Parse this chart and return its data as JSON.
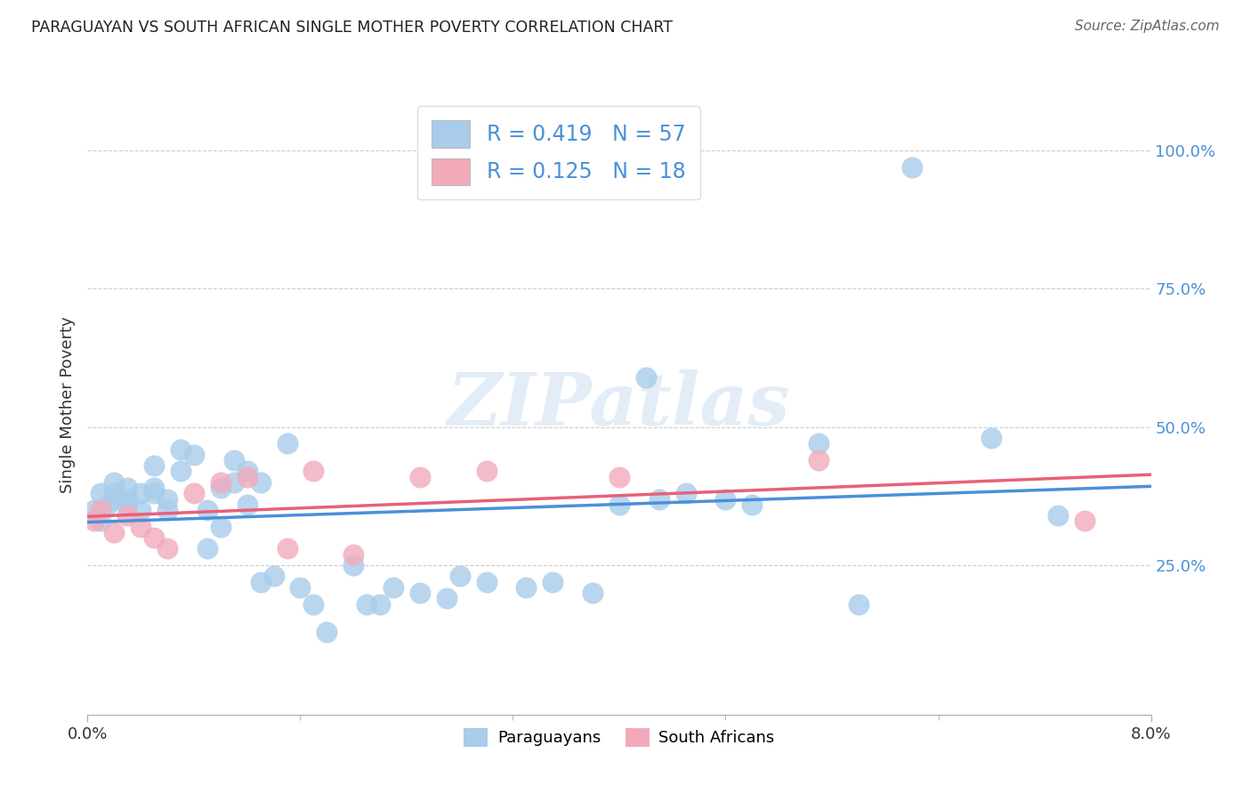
{
  "title": "PARAGUAYAN VS SOUTH AFRICAN SINGLE MOTHER POVERTY CORRELATION CHART",
  "source": "Source: ZipAtlas.com",
  "ylabel": "Single Mother Poverty",
  "ytick_values": [
    0.25,
    0.5,
    0.75,
    1.0
  ],
  "xlim": [
    0.0,
    0.08
  ],
  "ylim": [
    -0.02,
    1.1
  ],
  "blue_color": "#A8CCEA",
  "pink_color": "#F2AABB",
  "line_blue": "#4A90D9",
  "line_pink": "#E8607A",
  "text_blue": "#4A90D9",
  "watermark_color": "#C8DCF0",
  "paraguayan_x": [
    0.0005,
    0.001,
    0.001,
    0.0015,
    0.002,
    0.002,
    0.002,
    0.003,
    0.003,
    0.003,
    0.004,
    0.004,
    0.005,
    0.005,
    0.005,
    0.006,
    0.006,
    0.007,
    0.007,
    0.008,
    0.009,
    0.009,
    0.01,
    0.01,
    0.011,
    0.011,
    0.012,
    0.012,
    0.013,
    0.013,
    0.014,
    0.015,
    0.016,
    0.017,
    0.018,
    0.02,
    0.021,
    0.022,
    0.023,
    0.025,
    0.027,
    0.028,
    0.03,
    0.033,
    0.035,
    0.038,
    0.04,
    0.042,
    0.043,
    0.045,
    0.048,
    0.05,
    0.055,
    0.058,
    0.062,
    0.068,
    0.073
  ],
  "paraguayan_y": [
    0.35,
    0.33,
    0.38,
    0.36,
    0.37,
    0.4,
    0.38,
    0.36,
    0.39,
    0.37,
    0.38,
    0.35,
    0.39,
    0.43,
    0.38,
    0.35,
    0.37,
    0.46,
    0.42,
    0.45,
    0.28,
    0.35,
    0.32,
    0.39,
    0.4,
    0.44,
    0.36,
    0.42,
    0.4,
    0.22,
    0.23,
    0.47,
    0.21,
    0.18,
    0.13,
    0.25,
    0.18,
    0.18,
    0.21,
    0.2,
    0.19,
    0.23,
    0.22,
    0.21,
    0.22,
    0.2,
    0.36,
    0.59,
    0.37,
    0.38,
    0.37,
    0.36,
    0.47,
    0.18,
    0.97,
    0.48,
    0.34
  ],
  "southafrican_x": [
    0.0005,
    0.001,
    0.002,
    0.003,
    0.004,
    0.005,
    0.006,
    0.008,
    0.01,
    0.012,
    0.015,
    0.017,
    0.02,
    0.025,
    0.03,
    0.04,
    0.055,
    0.075
  ],
  "southafrican_y": [
    0.33,
    0.35,
    0.31,
    0.34,
    0.32,
    0.3,
    0.28,
    0.38,
    0.4,
    0.41,
    0.28,
    0.42,
    0.27,
    0.41,
    0.42,
    0.41,
    0.44,
    0.33
  ]
}
